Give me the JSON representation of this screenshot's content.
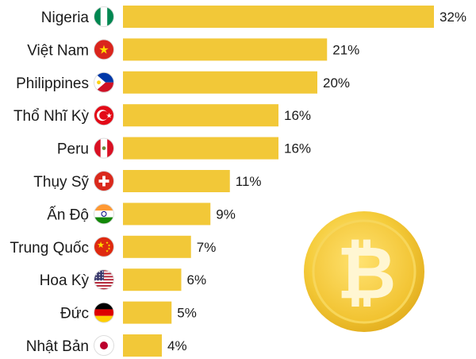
{
  "chart_data": {
    "type": "bar",
    "orientation": "horizontal",
    "categories": [
      "Nigeria",
      "Việt Nam",
      "Philippines",
      "Thổ Nhĩ Kỳ",
      "Peru",
      "Thụy Sỹ",
      "Ấn Độ",
      "Trung Quốc",
      "Hoa Kỳ",
      "Đức",
      "Nhật Bản"
    ],
    "values": [
      32,
      21,
      20,
      16,
      16,
      11,
      9,
      7,
      6,
      5,
      4
    ],
    "value_labels": [
      "32%",
      "21%",
      "20%",
      "16%",
      "16%",
      "11%",
      "9%",
      "7%",
      "6%",
      "5%",
      "4%"
    ],
    "flags": [
      "nigeria-flag-icon",
      "vietnam-flag-icon",
      "philippines-flag-icon",
      "turkey-flag-icon",
      "peru-flag-icon",
      "switzerland-flag-icon",
      "india-flag-icon",
      "china-flag-icon",
      "usa-flag-icon",
      "germany-flag-icon",
      "japan-flag-icon"
    ],
    "unit": "%",
    "xlim": [
      0,
      32
    ],
    "grid": false,
    "legend": "none",
    "bar_color": "#f2c838"
  },
  "decoration": {
    "icon": "bitcoin-coin-icon",
    "symbol": "₿"
  }
}
